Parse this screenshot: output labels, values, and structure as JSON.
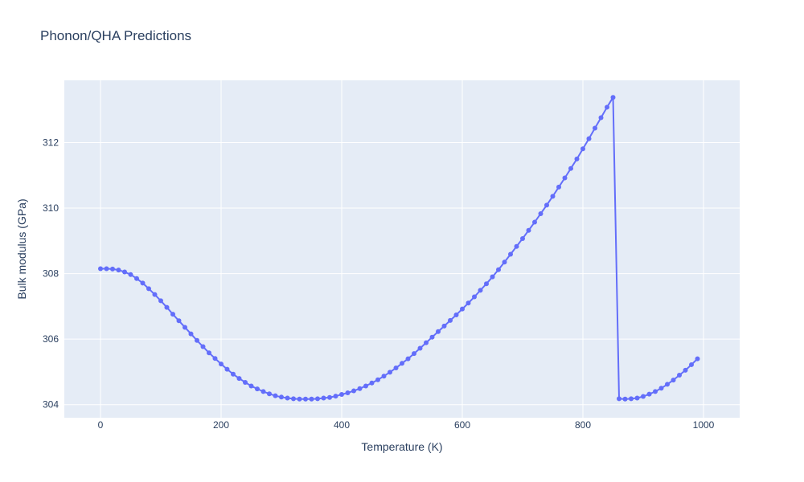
{
  "chart_data": {
    "type": "line",
    "title": "Phonon/QHA Predictions",
    "xlabel": "Temperature (K)",
    "ylabel": "Bulk modulus (GPa)",
    "xlim": [
      -60,
      1060
    ],
    "ylim": [
      303.6,
      313.9
    ],
    "xticks": [
      0,
      200,
      400,
      600,
      800,
      1000
    ],
    "yticks": [
      304,
      306,
      308,
      310,
      312
    ],
    "grid": true,
    "legend": "none",
    "colors": {
      "series": "#636efa",
      "plot_bg": "#e5ecf6",
      "grid": "#ffffff",
      "text": "#2a3f5f"
    },
    "series": [
      {
        "x": [
          0,
          10,
          20,
          30,
          40,
          50,
          60,
          70,
          80,
          90,
          100,
          110,
          120,
          130,
          140,
          150,
          160,
          170,
          180,
          190,
          200,
          210,
          220,
          230,
          240,
          250,
          260,
          270,
          280,
          290,
          300,
          310,
          320,
          330,
          340,
          350,
          360,
          370,
          380,
          390,
          400,
          410,
          420,
          430,
          440,
          450,
          460,
          470,
          480,
          490,
          500,
          510,
          520,
          530,
          540,
          550,
          560,
          570,
          580,
          590,
          600,
          610,
          620,
          630,
          640,
          650,
          660,
          670,
          680,
          690,
          700,
          710,
          720,
          730,
          740,
          750,
          760,
          770,
          780,
          790,
          800,
          810,
          820,
          830,
          840,
          850,
          860,
          870,
          880,
          890,
          900,
          910,
          920,
          930,
          940,
          950,
          960,
          970,
          980,
          990
        ],
        "y": [
          308.15,
          308.15,
          308.14,
          308.11,
          308.05,
          307.97,
          307.85,
          307.71,
          307.54,
          307.36,
          307.17,
          306.97,
          306.76,
          306.56,
          306.36,
          306.16,
          305.96,
          305.77,
          305.58,
          305.41,
          305.24,
          305.08,
          304.93,
          304.8,
          304.68,
          304.57,
          304.48,
          304.4,
          304.33,
          304.27,
          304.23,
          304.2,
          304.18,
          304.17,
          304.17,
          304.17,
          304.18,
          304.2,
          304.22,
          304.26,
          304.31,
          304.36,
          304.42,
          304.49,
          304.57,
          304.66,
          304.76,
          304.87,
          304.99,
          305.12,
          305.26,
          305.4,
          305.56,
          305.72,
          305.89,
          306.06,
          306.23,
          306.4,
          306.57,
          306.74,
          306.92,
          307.1,
          307.29,
          307.49,
          307.69,
          307.9,
          308.12,
          308.35,
          308.59,
          308.83,
          309.07,
          309.32,
          309.57,
          309.83,
          310.09,
          310.36,
          310.64,
          310.92,
          311.21,
          311.5,
          311.81,
          312.12,
          312.44,
          312.76,
          313.08,
          313.38,
          304.18,
          304.17,
          304.18,
          304.2,
          304.25,
          304.32,
          304.4,
          304.5,
          304.62,
          304.75,
          304.9,
          305.05,
          305.22,
          305.4
        ]
      }
    ]
  }
}
